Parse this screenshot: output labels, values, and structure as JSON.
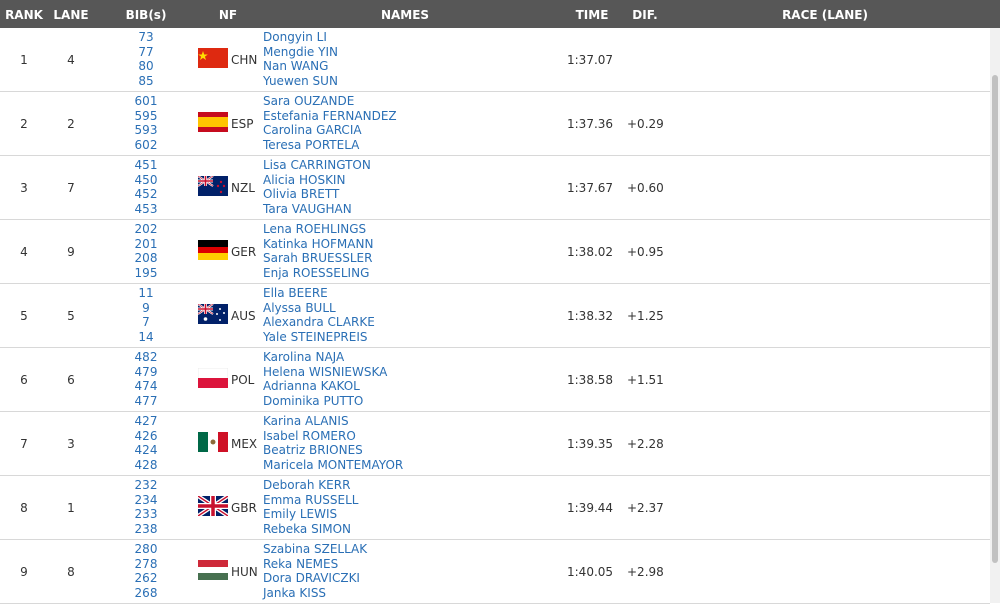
{
  "header": {
    "columns": [
      "RANK",
      "LANE",
      "BIB(s)",
      "NF",
      "NAMES",
      "TIME",
      "DIF.",
      "RACE (LANE)"
    ]
  },
  "table": {
    "rows": [
      {
        "rank": 1,
        "lane": 4,
        "bibs": [
          73,
          77,
          80,
          85
        ],
        "nf": "CHN",
        "names": [
          "Dongyin LI",
          "Mengdie YIN",
          "Nan WANG",
          "Yuewen SUN"
        ],
        "time": "1:37.07"
      },
      {
        "rank": 2,
        "lane": 2,
        "bibs": [
          601,
          595,
          593,
          602
        ],
        "nf": "ESP",
        "names": [
          "Sara OUZANDE",
          "Estefania FERNANDEZ",
          "Carolina GARCIA",
          "Teresa PORTELA"
        ],
        "time": "1:37.36",
        "dif": "+0.29"
      },
      {
        "rank": 3,
        "lane": 7,
        "bibs": [
          451,
          450,
          452,
          453
        ],
        "nf": "NZL",
        "names": [
          "Lisa CARRINGTON",
          "Alicia HOSKIN",
          "Olivia BRETT",
          "Tara VAUGHAN"
        ],
        "time": "1:37.67",
        "dif": "+0.60"
      },
      {
        "rank": 4,
        "lane": 9,
        "bibs": [
          202,
          201,
          208,
          195
        ],
        "nf": "GER",
        "names": [
          "Lena ROEHLINGS",
          "Katinka HOFMANN",
          "Sarah BRUESSLER",
          "Enja ROESSELING"
        ],
        "time": "1:38.02",
        "dif": "+0.95"
      },
      {
        "rank": 5,
        "lane": 5,
        "bibs": [
          11,
          9,
          7,
          14
        ],
        "nf": "AUS",
        "names": [
          "Ella BEERE",
          "Alyssa BULL",
          "Alexandra CLARKE",
          "Yale STEINEPREIS"
        ],
        "time": "1:38.32",
        "dif": "+1.25"
      },
      {
        "rank": 6,
        "lane": 6,
        "bibs": [
          482,
          479,
          474,
          477
        ],
        "nf": "POL",
        "names": [
          "Karolina NAJA",
          "Helena WISNIEWSKA",
          "Adrianna KAKOL",
          "Dominika PUTTO"
        ],
        "time": "1:38.58",
        "dif": "+1.51"
      },
      {
        "rank": 7,
        "lane": 3,
        "bibs": [
          427,
          426,
          424,
          428
        ],
        "nf": "MEX",
        "names": [
          "Karina ALANIS",
          "Isabel ROMERO",
          "Beatriz BRIONES",
          "Maricela MONTEMAYOR"
        ],
        "time": "1:39.35",
        "dif": "+2.28"
      },
      {
        "rank": 8,
        "lane": 1,
        "bibs": [
          232,
          234,
          233,
          238
        ],
        "nf": "GBR",
        "names": [
          "Deborah KERR",
          "Emma RUSSELL",
          "Emily LEWIS",
          "Rebeka SIMON"
        ],
        "time": "1:39.44",
        "dif": "+2.37"
      },
      {
        "rank": 9,
        "lane": 8,
        "bibs": [
          280,
          278,
          262,
          268
        ],
        "nf": "HUN",
        "names": [
          "Szabina SZELLAK",
          "Reka NEMES",
          "Dora DRAVICZKI",
          "Janka KISS"
        ],
        "time": "1:40.05",
        "dif": "+2.98"
      }
    ]
  }
}
